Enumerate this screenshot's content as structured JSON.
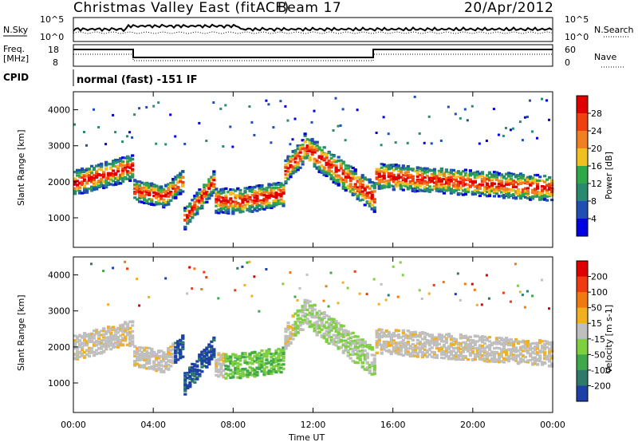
{
  "header": {
    "title": "Christmas Valley East (fitACF)",
    "beam": "Beam 17",
    "date": "20/Apr/2012"
  },
  "panels": {
    "nsky_label": "N.Sky",
    "nsearch_label": "N.Search",
    "freq_label_1": "Freq.",
    "freq_label_2": "[MHz]",
    "nave_label": "Nave",
    "cpid_label": "CPID",
    "cpid_value": "normal (fast) -151 IF",
    "noise_ticks_left": [
      "10^5",
      "10^0"
    ],
    "noise_ticks_right": [
      "10^5",
      "10^0"
    ],
    "freq_ticks": [
      "18",
      "8"
    ],
    "nave_ticks": [
      "60",
      "0"
    ]
  },
  "chart_data": [
    {
      "type": "heatmap",
      "name": "power",
      "ylabel": "Slant Range [km]",
      "y_ticks": [
        "4000",
        "3000",
        "2000",
        "1000"
      ],
      "ylim": [
        180,
        4500
      ],
      "colorbar_label": "Power [dB]",
      "colorbar_ticks": [
        "28",
        "24",
        "20",
        "16",
        "12",
        "8",
        "4"
      ],
      "colorbar_colors": [
        "#0000e0",
        "#1f4fb0",
        "#2a8a70",
        "#2fa84a",
        "#f0c020",
        "#f08020",
        "#f04010",
        "#e00000"
      ]
    },
    {
      "type": "heatmap",
      "name": "velocity",
      "ylabel": "Slant Range [km]",
      "y_ticks": [
        "4000",
        "3000",
        "2000",
        "1000"
      ],
      "ylim": [
        180,
        4500
      ],
      "colorbar_label": "Velocity [m s-1]",
      "colorbar_ticks": [
        "200",
        "100",
        "50",
        "15",
        "-15",
        "-50",
        "-100",
        "-200"
      ],
      "colorbar_colors": [
        "#1d3fa6",
        "#2e7a6a",
        "#3ea84a",
        "#7ed040",
        "#bfbfbf",
        "#f0b020",
        "#f07a10",
        "#f03a10",
        "#e00000"
      ]
    }
  ],
  "x_ticks": [
    "00:00",
    "04:00",
    "08:00",
    "12:00",
    "16:00",
    "20:00",
    "00:00"
  ],
  "xlabel": "Time UT"
}
